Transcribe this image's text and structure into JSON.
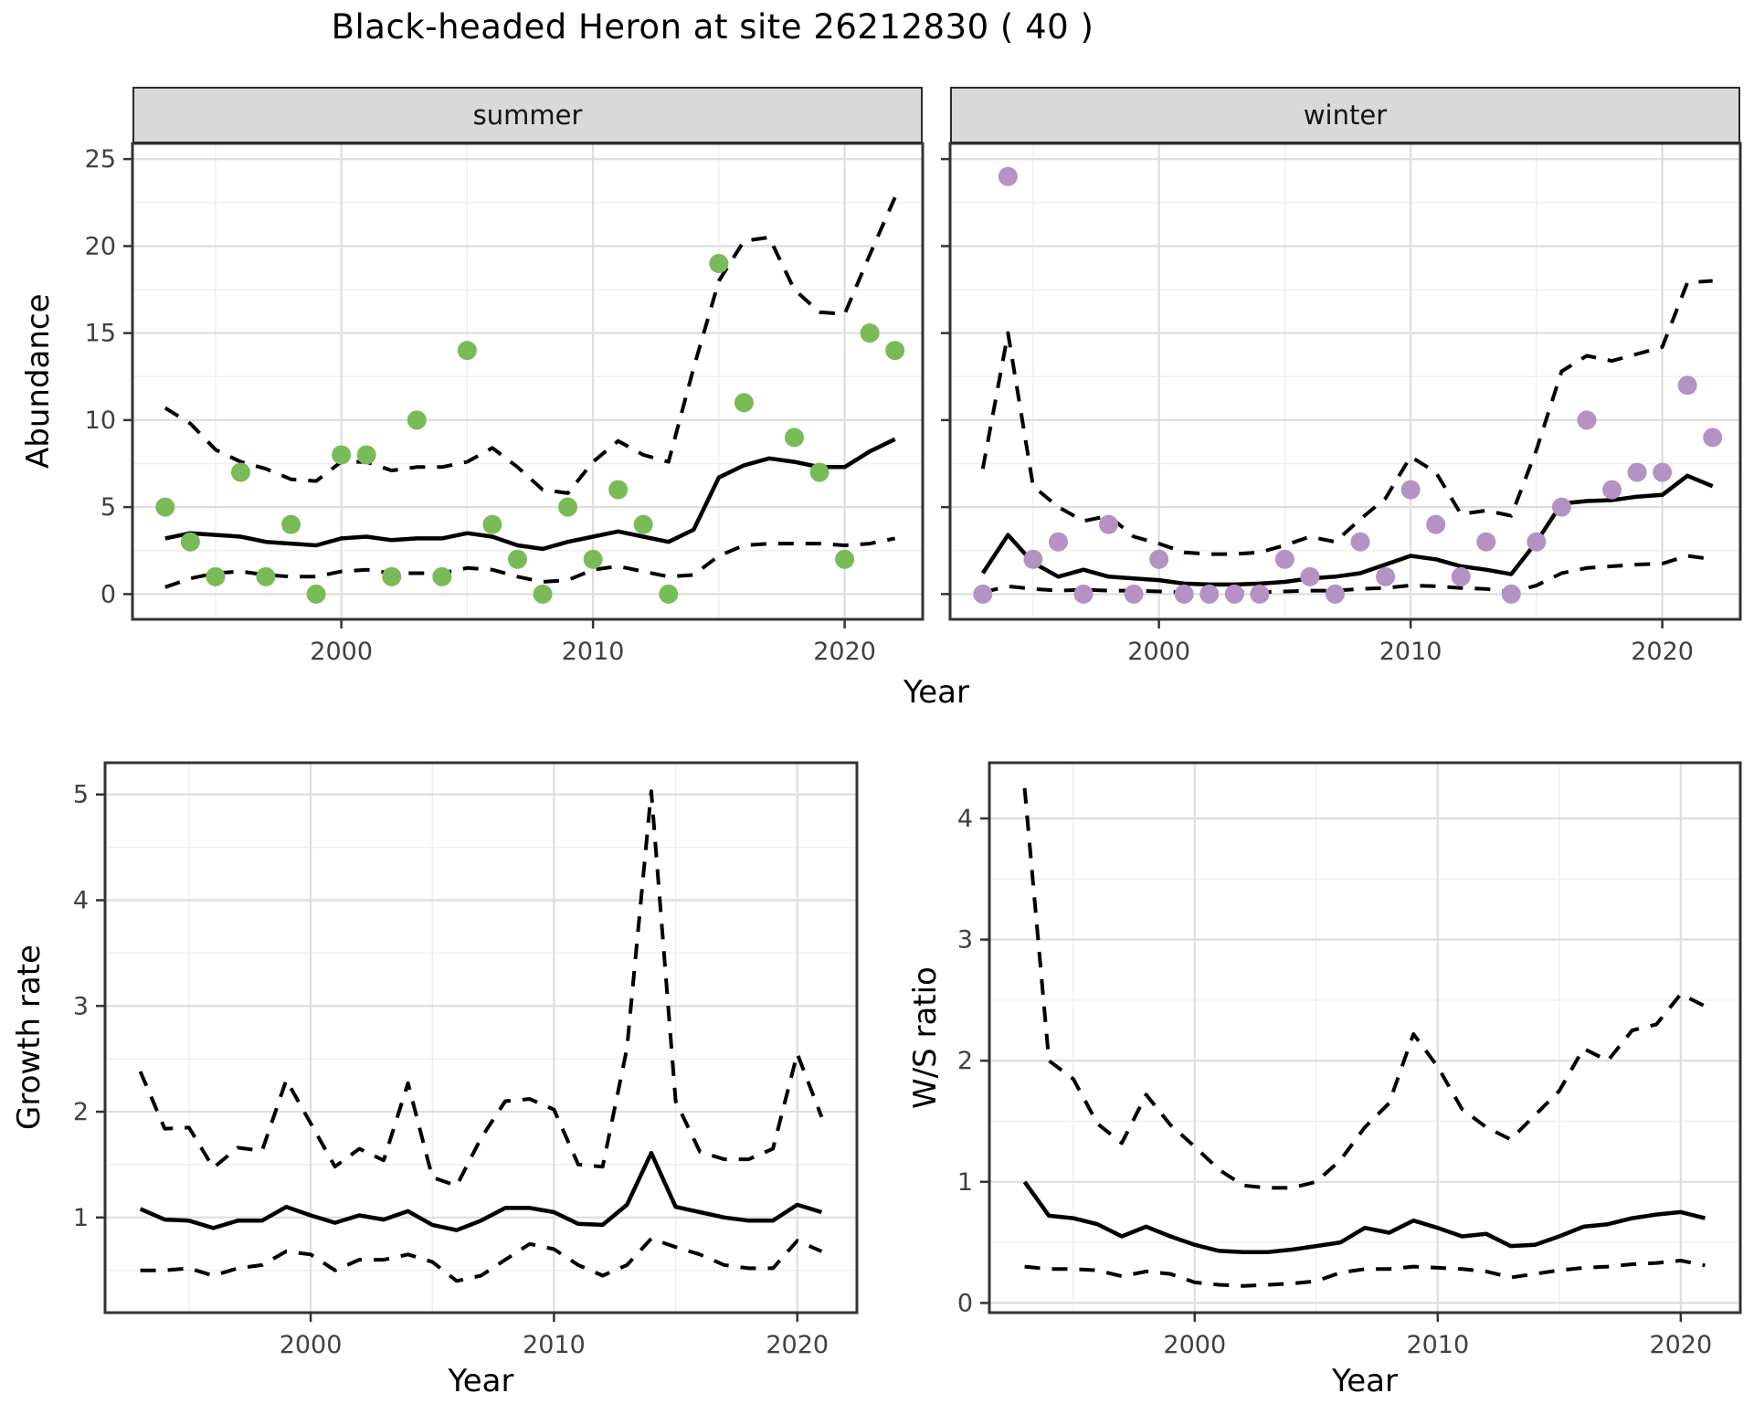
{
  "title": "Black-headed Heron at site 26212830 ( 40 )",
  "facets": {
    "summer": "summer",
    "winter": "winter"
  },
  "axes": {
    "abundance_label": "Abundance",
    "year_label_top": "Year",
    "growth_label": "Growth rate",
    "year_label_bottom_left": "Year",
    "ws_label": "W/S ratio",
    "year_label_bottom_right": "Year"
  },
  "colors": {
    "summer_point": "#79BB59",
    "winter_point": "#B492C4",
    "fit_line": "#000000",
    "ci_line": "#000000",
    "grid_major": "#dedede",
    "grid_minor": "#efefef",
    "panel_border": "#333333",
    "strip_bg": "#d9d9d9",
    "tick_text": "#404040"
  },
  "chart_data": [
    {
      "id": "abundance-summer",
      "type": "line+scatter",
      "facet_label": "summer",
      "xlabel": "Year",
      "ylabel": "Abundance",
      "xlim": [
        1991.7,
        2023.1
      ],
      "ylim": [
        -1.45,
        25.9
      ],
      "xticks": [
        2000,
        2010,
        2020
      ],
      "xminor": [
        1995,
        2005,
        2015
      ],
      "yticks": [
        0,
        5,
        10,
        15,
        20,
        25
      ],
      "yminor": [
        2.5,
        7.5,
        12.5,
        17.5,
        22.5
      ],
      "grid": true,
      "legend": "none",
      "x": [
        1993,
        1994,
        1995,
        1996,
        1997,
        1998,
        1999,
        2000,
        2001,
        2002,
        2003,
        2004,
        2005,
        2006,
        2007,
        2008,
        2009,
        2010,
        2011,
        2012,
        2013,
        2014,
        2015,
        2016,
        2017,
        2018,
        2019,
        2020,
        2021,
        2022
      ],
      "series": [
        {
          "name": "observed counts",
          "type": "scatter",
          "color": "#79BB59",
          "values": [
            5,
            3,
            1,
            7,
            1,
            4,
            0,
            8,
            8,
            1,
            10,
            1,
            14,
            4,
            2,
            0,
            5,
            2,
            6,
            4,
            0,
            null,
            19,
            11,
            null,
            9,
            7,
            2,
            15,
            14
          ]
        },
        {
          "name": "model fit",
          "type": "line",
          "style": "solid",
          "values": [
            3.2,
            3.5,
            3.4,
            3.3,
            3.0,
            2.9,
            2.8,
            3.2,
            3.3,
            3.1,
            3.2,
            3.2,
            3.5,
            3.3,
            2.8,
            2.6,
            3.0,
            3.3,
            3.6,
            3.3,
            3.0,
            3.7,
            6.7,
            7.4,
            7.8,
            7.6,
            7.3,
            7.3,
            8.2,
            8.9
          ]
        },
        {
          "name": "upper CI",
          "type": "line",
          "style": "dashed",
          "values": [
            10.7,
            9.8,
            8.3,
            7.6,
            7.2,
            6.6,
            6.5,
            7.6,
            7.6,
            7.1,
            7.3,
            7.3,
            7.6,
            8.4,
            7.3,
            6.0,
            5.8,
            7.6,
            8.8,
            8.0,
            7.6,
            13.0,
            18.0,
            20.3,
            20.5,
            17.5,
            16.2,
            16.1,
            19.5,
            22.8
          ]
        },
        {
          "name": "lower CI",
          "type": "line",
          "style": "dashed",
          "values": [
            0.4,
            0.9,
            1.2,
            1.3,
            1.1,
            1.0,
            1.0,
            1.3,
            1.4,
            1.2,
            1.2,
            1.2,
            1.5,
            1.4,
            1.0,
            0.7,
            0.8,
            1.4,
            1.6,
            1.3,
            1.0,
            1.1,
            2.2,
            2.8,
            2.9,
            2.9,
            2.9,
            2.8,
            2.9,
            3.2
          ]
        }
      ]
    },
    {
      "id": "abundance-winter",
      "type": "line+scatter",
      "facet_label": "winter",
      "xlabel": "Year",
      "ylabel": "Abundance",
      "xlim": [
        1991.7,
        2023.1
      ],
      "ylim": [
        -1.45,
        25.9
      ],
      "xticks": [
        2000,
        2010,
        2020
      ],
      "xminor": [
        1995,
        2005,
        2015
      ],
      "yticks": [
        0,
        5,
        10,
        15,
        20,
        25
      ],
      "yminor": [
        2.5,
        7.5,
        12.5,
        17.5,
        22.5
      ],
      "grid": true,
      "legend": "none",
      "x": [
        1993,
        1994,
        1995,
        1996,
        1997,
        1998,
        1999,
        2000,
        2001,
        2002,
        2003,
        2004,
        2005,
        2006,
        2007,
        2008,
        2009,
        2010,
        2011,
        2012,
        2013,
        2014,
        2015,
        2016,
        2017,
        2018,
        2019,
        2020,
        2021,
        2022
      ],
      "series": [
        {
          "name": "observed counts",
          "type": "scatter",
          "color": "#B492C4",
          "values": [
            0,
            24,
            2,
            3,
            0,
            4,
            0,
            2,
            0,
            0,
            0,
            0,
            2,
            1,
            0,
            3,
            1,
            6,
            4,
            1,
            3,
            0,
            3,
            5,
            10,
            6,
            7,
            7,
            12,
            9
          ]
        },
        {
          "name": "model fit",
          "type": "line",
          "style": "solid",
          "values": [
            1.2,
            3.4,
            1.8,
            1.0,
            1.4,
            1.0,
            0.9,
            0.8,
            0.6,
            0.55,
            0.55,
            0.6,
            0.7,
            0.9,
            1.0,
            1.2,
            1.7,
            2.2,
            2.0,
            1.6,
            1.4,
            1.15,
            3.0,
            5.2,
            5.35,
            5.4,
            5.6,
            5.7,
            6.8,
            6.2
          ]
        },
        {
          "name": "upper CI",
          "type": "line",
          "style": "dashed",
          "values": [
            7.2,
            15.0,
            6.2,
            5.0,
            4.2,
            4.5,
            3.3,
            2.9,
            2.4,
            2.3,
            2.3,
            2.4,
            2.8,
            3.3,
            3.0,
            4.3,
            5.5,
            7.9,
            7.0,
            4.6,
            4.8,
            4.5,
            8.3,
            12.8,
            13.7,
            13.4,
            13.8,
            14.2,
            17.9,
            18.0
          ]
        },
        {
          "name": "lower CI",
          "type": "line",
          "style": "dashed",
          "values": [
            0.1,
            0.45,
            0.3,
            0.2,
            0.25,
            0.2,
            0.2,
            0.15,
            0.1,
            0.1,
            0.1,
            0.1,
            0.15,
            0.2,
            0.2,
            0.3,
            0.35,
            0.5,
            0.45,
            0.35,
            0.3,
            0.1,
            0.5,
            1.2,
            1.5,
            1.6,
            1.7,
            1.75,
            2.2,
            2.0
          ]
        }
      ]
    },
    {
      "id": "growth-rate",
      "type": "line",
      "xlabel": "Year",
      "ylabel": "Growth rate",
      "xlim": [
        1991.55,
        2022.45
      ],
      "ylim": [
        0.1,
        5.3
      ],
      "xticks": [
        2000,
        2010,
        2020
      ],
      "xminor": [
        1995,
        2005,
        2015
      ],
      "yticks": [
        1,
        2,
        3,
        4,
        5
      ],
      "yminor": [
        0.5,
        1.5,
        2.5,
        3.5,
        4.5
      ],
      "grid": true,
      "legend": "none",
      "x": [
        1993,
        1994,
        1995,
        1996,
        1997,
        1998,
        1999,
        2000,
        2001,
        2002,
        2003,
        2004,
        2005,
        2006,
        2007,
        2008,
        2009,
        2010,
        2011,
        2012,
        2013,
        2014,
        2015,
        2016,
        2017,
        2018,
        2019,
        2020,
        2021
      ],
      "series": [
        {
          "name": "growth rate",
          "type": "line",
          "style": "solid",
          "values": [
            1.08,
            0.98,
            0.97,
            0.9,
            0.97,
            0.97,
            1.1,
            1.02,
            0.95,
            1.02,
            0.98,
            1.06,
            0.93,
            0.88,
            0.97,
            1.09,
            1.09,
            1.05,
            0.94,
            0.93,
            1.12,
            1.61,
            1.1,
            1.05,
            1.0,
            0.97,
            0.97,
            1.12,
            1.05
          ]
        },
        {
          "name": "upper CI",
          "type": "line",
          "style": "dashed",
          "values": [
            2.38,
            1.84,
            1.85,
            1.47,
            1.66,
            1.63,
            2.3,
            1.89,
            1.48,
            1.65,
            1.54,
            2.27,
            1.38,
            1.3,
            1.75,
            2.1,
            2.12,
            2.02,
            1.5,
            1.48,
            2.6,
            5.03,
            2.1,
            1.62,
            1.55,
            1.55,
            1.65,
            2.55,
            1.95
          ]
        },
        {
          "name": "lower CI",
          "type": "line",
          "style": "dashed",
          "values": [
            0.5,
            0.5,
            0.52,
            0.45,
            0.52,
            0.55,
            0.68,
            0.65,
            0.5,
            0.6,
            0.6,
            0.65,
            0.58,
            0.4,
            0.45,
            0.6,
            0.75,
            0.7,
            0.55,
            0.45,
            0.55,
            0.8,
            0.72,
            0.65,
            0.55,
            0.52,
            0.52,
            0.78,
            0.68
          ]
        }
      ]
    },
    {
      "id": "ws-ratio",
      "type": "line",
      "xlabel": "Year",
      "ylabel": "W/S ratio",
      "xlim": [
        1991.55,
        2022.45
      ],
      "ylim": [
        -0.08,
        4.46
      ],
      "xticks": [
        2000,
        2010,
        2020
      ],
      "xminor": [
        1995,
        2005,
        2015
      ],
      "yticks": [
        0,
        1,
        2,
        3,
        4
      ],
      "yminor": [
        0.5,
        1.5,
        2.5,
        3.5
      ],
      "grid": true,
      "legend": "none",
      "x": [
        1993,
        1994,
        1995,
        1996,
        1997,
        1998,
        1999,
        2000,
        2001,
        2002,
        2003,
        2004,
        2005,
        2006,
        2007,
        2008,
        2009,
        2010,
        2011,
        2012,
        2013,
        2014,
        2015,
        2016,
        2017,
        2018,
        2019,
        2020,
        2021
      ],
      "series": [
        {
          "name": "W/S ratio",
          "type": "line",
          "style": "solid",
          "values": [
            1.0,
            0.72,
            0.7,
            0.65,
            0.55,
            0.63,
            0.55,
            0.48,
            0.43,
            0.42,
            0.42,
            0.44,
            0.47,
            0.5,
            0.62,
            0.58,
            0.68,
            0.62,
            0.55,
            0.57,
            0.47,
            0.48,
            0.55,
            0.63,
            0.65,
            0.7,
            0.73,
            0.75,
            0.7
          ]
        },
        {
          "name": "upper CI",
          "type": "line",
          "style": "dashed",
          "values": [
            4.25,
            2.0,
            1.85,
            1.48,
            1.32,
            1.72,
            1.47,
            1.29,
            1.1,
            0.97,
            0.95,
            0.95,
            1.0,
            1.18,
            1.45,
            1.65,
            2.22,
            1.95,
            1.6,
            1.45,
            1.35,
            1.55,
            1.75,
            2.1,
            2.0,
            2.25,
            2.3,
            2.55,
            2.45
          ]
        },
        {
          "name": "lower CI",
          "type": "line",
          "style": "dashed",
          "values": [
            0.3,
            0.28,
            0.28,
            0.27,
            0.22,
            0.26,
            0.24,
            0.17,
            0.15,
            0.14,
            0.15,
            0.16,
            0.18,
            0.25,
            0.28,
            0.28,
            0.3,
            0.29,
            0.28,
            0.26,
            0.21,
            0.24,
            0.27,
            0.29,
            0.3,
            0.32,
            0.33,
            0.35,
            0.31
          ]
        }
      ]
    }
  ]
}
